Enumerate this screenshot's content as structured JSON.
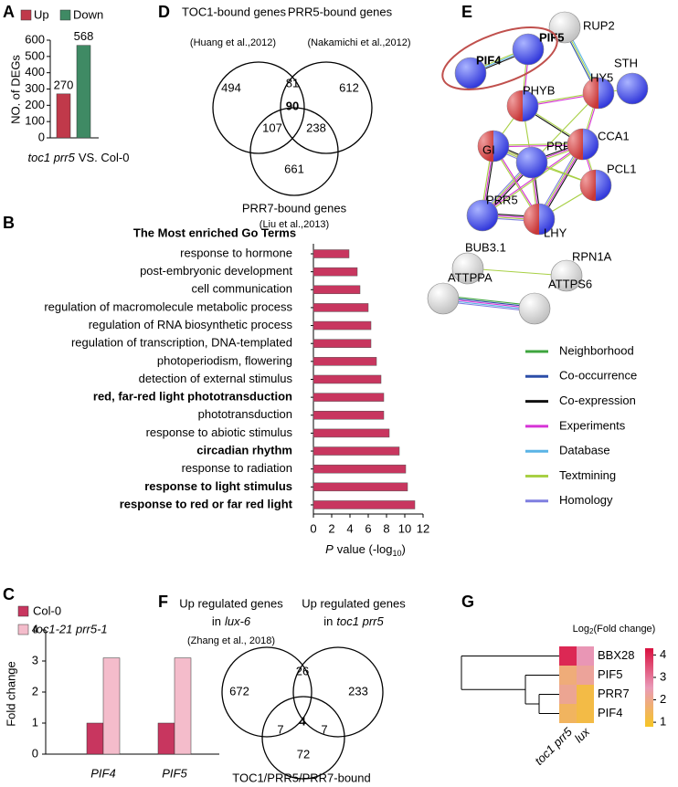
{
  "panel_labels": [
    "A",
    "B",
    "C",
    "D",
    "E",
    "F",
    "G"
  ],
  "chart_data": [
    {
      "type": "bar",
      "ylabel": "NO. of DEGs",
      "xlabel_italic": "toc1 prr5",
      "xlabel": "VS. Col-0",
      "series": [
        {
          "name": "Up",
          "color": "#c0394a",
          "values": [
            270
          ]
        },
        {
          "name": "Down",
          "color": "#3f8a64",
          "values": [
            568
          ]
        }
      ],
      "ylim": [
        0,
        600
      ],
      "yticks": [
        0,
        100,
        200,
        300,
        400,
        500,
        600
      ]
    },
    {
      "type": "hbar",
      "title": "The Most enriched Go Terms",
      "categories": [
        "response to hormone",
        "post-embryonic development",
        "cell communication",
        "regulation of macromolecule metabolic process",
        "regulation of RNA biosynthetic process",
        "regulation of transcription, DNA-templated",
        "photoperiodism, flowering",
        "detection of external stimulus",
        "red, far-red light phototransduction",
        "phototransduction",
        "response to abiotic stimulus",
        "circadian rhythm",
        "response to radiation",
        "response to light stimulus",
        "response to red or far red light"
      ],
      "values": [
        3.9,
        4.8,
        5.1,
        6.0,
        6.3,
        6.3,
        6.9,
        7.4,
        7.7,
        7.7,
        8.3,
        9.4,
        10.1,
        10.3,
        11.1
      ],
      "label_colors": [
        "#000000",
        "#000000",
        "#000000",
        "#000000",
        "#000000",
        "#000000",
        "#000000",
        "#000000",
        "#1b1f7a",
        "#000000",
        "#000000",
        "#1b1f7a",
        "#000000",
        "#1b1f7a",
        "#1b1f7a"
      ],
      "color": "#c8365f",
      "xlabel_italic": "P",
      "xlabel": "value (-log",
      "xlabel_sub": "10",
      "xlabel_end": ")",
      "xlim": [
        0,
        12
      ],
      "xticks": [
        0,
        2,
        4,
        6,
        8,
        10,
        12
      ]
    },
    {
      "type": "bar",
      "ylabel": "Fold change",
      "categories": [
        "PIF4",
        "PIF5"
      ],
      "series": [
        {
          "name": "Col-0",
          "color": "#c8365f",
          "values": [
            1,
            1
          ]
        },
        {
          "name": "toc1-21 prr5-1",
          "color": "#f4bccb",
          "values": [
            3.1,
            3.1
          ]
        }
      ],
      "ylim": [
        0,
        4
      ],
      "yticks": [
        0,
        1,
        2,
        3,
        4
      ]
    },
    {
      "type": "heatmap",
      "title": "Log",
      "title_sub": "2",
      "title_end": "(Fold change)",
      "rows": [
        "BBX28",
        "PIF5",
        "PRR7",
        "PIF4"
      ],
      "columns": [
        "toc1 prr5",
        "lux"
      ],
      "values": [
        [
          4.0,
          2.6
        ],
        [
          1.8,
          2.2
        ],
        [
          2.1,
          1.2
        ],
        [
          1.5,
          1.2
        ]
      ],
      "colors": [
        "#f6c524",
        "#e99ab8",
        "#d9103f"
      ],
      "clim": [
        0.8,
        4.3
      ],
      "cticks": [
        1,
        2,
        3,
        4
      ]
    }
  ],
  "venn_d": {
    "sets": [
      {
        "name": "TOC1-bound genes",
        "ref": "(Huang et al.,2012)"
      },
      {
        "name": "PRR5-bound genes",
        "ref": "(Nakamichi et al.,2012)"
      },
      {
        "name": "PRR7-bound genes",
        "ref": "(Liu et al.,2013)"
      }
    ],
    "regions": [
      494,
      81,
      612,
      107,
      90,
      238,
      661
    ]
  },
  "network": {
    "nodes": [
      "RUP2",
      "PIF5",
      "PIF4",
      "STH",
      "HY5",
      "PHYB",
      "GI",
      "PRR7",
      "CCA1",
      "PCL1",
      "PRR5",
      "LHY",
      "BUB3.1",
      "RPN1A",
      "ATTPPA",
      "ATTPS6"
    ],
    "evidence": [
      {
        "name": "Neighborhood",
        "color": "#3ea53e"
      },
      {
        "name": "Co-occurrence",
        "color": "#2c4ea8"
      },
      {
        "name": "Co-expression",
        "color": "#111111"
      },
      {
        "name": "Experiments",
        "color": "#d633d6"
      },
      {
        "name": "Database",
        "color": "#5ab4e6"
      },
      {
        "name": "Textmining",
        "color": "#a8d045"
      },
      {
        "name": "Homology",
        "color": "#7f7fe0"
      }
    ]
  },
  "venn_f": {
    "sets": [
      {
        "name": "Up regulated genes",
        "prefix": "in",
        "italic": "lux-6",
        "ref": "(Zhang et al., 2018)"
      },
      {
        "name": "Up regulated genes",
        "prefix": "in",
        "italic": "toc1 prr5"
      },
      {
        "name": "TOC1/PRR5/PRR7-bound"
      }
    ],
    "regions": [
      672,
      26,
      233,
      7,
      4,
      7,
      72
    ]
  }
}
